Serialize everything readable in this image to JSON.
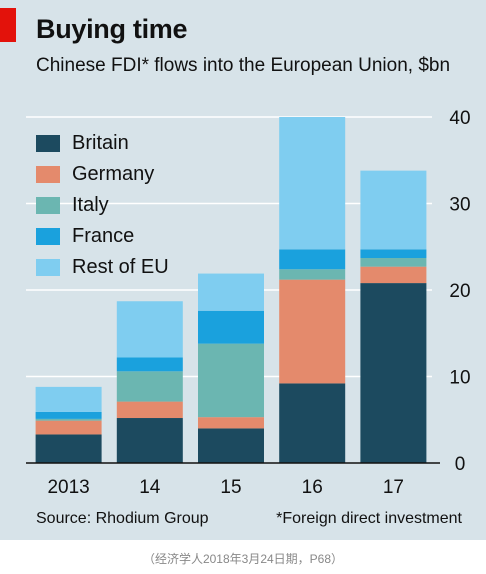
{
  "header": {
    "title": "Buying time",
    "subtitle": "Chinese FDI* flows into the European Union, $bn"
  },
  "footer": {
    "source": "Source: Rhodium Group",
    "footnote": "*Foreign direct investment",
    "caption": "（经济学人2018年3月24日期，P68）"
  },
  "colors": {
    "background": "#d7e3e9",
    "accent": "#e3120b",
    "Britain": "#1c4a5f",
    "Germany": "#e48a6c",
    "Italy": "#6bb6b1",
    "France": "#1aa1dd",
    "Rest of EU": "#7fcdf0"
  },
  "chart_data": {
    "type": "bar",
    "stacked": true,
    "categories": [
      "2013",
      "14",
      "15",
      "16",
      "17"
    ],
    "series": [
      {
        "name": "Britain",
        "values": [
          3.3,
          5.2,
          4.0,
          9.2,
          20.8
        ]
      },
      {
        "name": "Germany",
        "values": [
          1.6,
          1.9,
          1.3,
          12.0,
          1.9
        ]
      },
      {
        "name": "Italy",
        "values": [
          0.2,
          3.5,
          8.5,
          1.2,
          1.0
        ]
      },
      {
        "name": "France",
        "values": [
          0.8,
          1.6,
          3.8,
          2.3,
          1.0
        ]
      },
      {
        "name": "Rest of EU",
        "values": [
          2.9,
          6.5,
          4.3,
          15.3,
          9.1
        ]
      }
    ],
    "y_ticks": [
      "0",
      "10",
      "20",
      "30",
      "40"
    ],
    "ylim": [
      0,
      40
    ],
    "y_axis_side": "right",
    "grid": true,
    "legend_position": "top-left"
  }
}
